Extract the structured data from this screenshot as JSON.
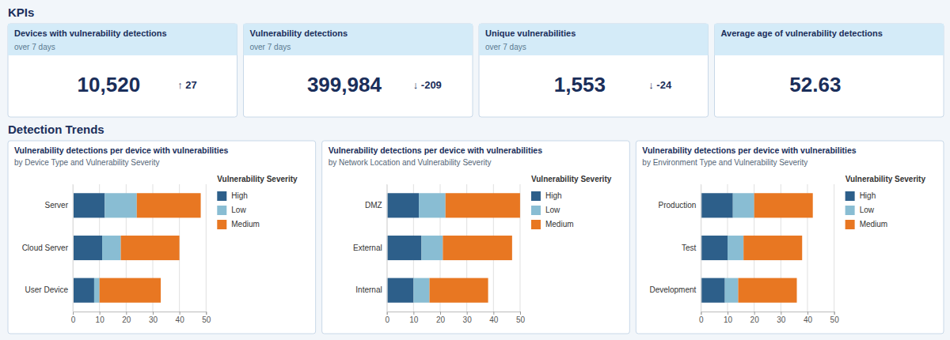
{
  "chart_data": [
    {
      "type": "kpi",
      "title": "KPIs",
      "categories": [
        "Devices with vulnerability detections",
        "Vulnerability detections",
        "Unique vulnerabilities",
        "Average age of vulnerability detections"
      ],
      "values": [
        10520,
        399984,
        1553,
        52.63
      ],
      "value_labels": [
        "10,520",
        "399,984",
        "1,553",
        "52.63"
      ],
      "annotations": [
        {
          "text": "over 7 days",
          "category": "Devices with vulnerability detections"
        },
        {
          "text": "↑ 27",
          "category": "Devices with vulnerability detections"
        },
        {
          "text": "over 7 days",
          "category": "Vulnerability detections"
        },
        {
          "text": "↓ -209",
          "category": "Vulnerability detections"
        },
        {
          "text": "over 7 days",
          "category": "Unique vulnerabilities"
        },
        {
          "text": "↓ -24",
          "category": "Unique vulnerabilities"
        }
      ]
    },
    {
      "type": "bar",
      "orientation": "horizontal",
      "stacked": true,
      "title": "Vulnerability detections per device with vulnerabilities",
      "subtitle": "by Device Type and Vulnerability Severity",
      "categories": [
        "Server",
        "Cloud Server",
        "User Device"
      ],
      "series": [
        {
          "name": "High",
          "color": "#2d5f8a",
          "values": [
            12,
            11,
            8
          ]
        },
        {
          "name": "Low",
          "color": "#89bdd3",
          "values": [
            12,
            7,
            2
          ]
        },
        {
          "name": "Medium",
          "color": "#e87722",
          "values": [
            24,
            22,
            23
          ]
        }
      ],
      "xlim": [
        0,
        50
      ],
      "xticks": [
        0,
        10,
        20,
        30,
        40,
        50
      ],
      "grid": true,
      "legend": "upper right",
      "annotations": [
        {
          "text": "Detection Trends"
        },
        {
          "text": "Vulnerability Severity"
        }
      ]
    },
    {
      "type": "bar",
      "orientation": "horizontal",
      "stacked": true,
      "title": "Vulnerability detections per device with vulnerabilities",
      "subtitle": "by Network Location and Vulnerability Severity",
      "categories": [
        "DMZ",
        "External",
        "Internal"
      ],
      "series": [
        {
          "name": "High",
          "color": "#2d5f8a",
          "values": [
            12,
            13,
            10
          ]
        },
        {
          "name": "Low",
          "color": "#89bdd3",
          "values": [
            10,
            8,
            6
          ]
        },
        {
          "name": "Medium",
          "color": "#e87722",
          "values": [
            28,
            26,
            22
          ]
        }
      ],
      "xlim": [
        0,
        50
      ],
      "xticks": [
        0,
        10,
        20,
        30,
        40,
        50
      ],
      "grid": true,
      "legend": "upper right",
      "annotations": [
        {
          "text": "Vulnerability Severity"
        }
      ]
    },
    {
      "type": "bar",
      "orientation": "horizontal",
      "stacked": true,
      "title": "Vulnerability detections per device with vulnerabilities",
      "subtitle": "by Environment Type and Vulnerability Severity",
      "categories": [
        "Production",
        "Test",
        "Development"
      ],
      "series": [
        {
          "name": "High",
          "color": "#2d5f8a",
          "values": [
            12,
            10,
            9
          ]
        },
        {
          "name": "Low",
          "color": "#89bdd3",
          "values": [
            8,
            6,
            5
          ]
        },
        {
          "name": "Medium",
          "color": "#e87722",
          "values": [
            22,
            22,
            22
          ]
        }
      ],
      "xlim": [
        0,
        50
      ],
      "xticks": [
        0,
        10,
        20,
        30,
        40,
        50
      ],
      "grid": true,
      "legend": "upper right",
      "annotations": [
        {
          "text": "Vulnerability Severity"
        }
      ]
    }
  ]
}
